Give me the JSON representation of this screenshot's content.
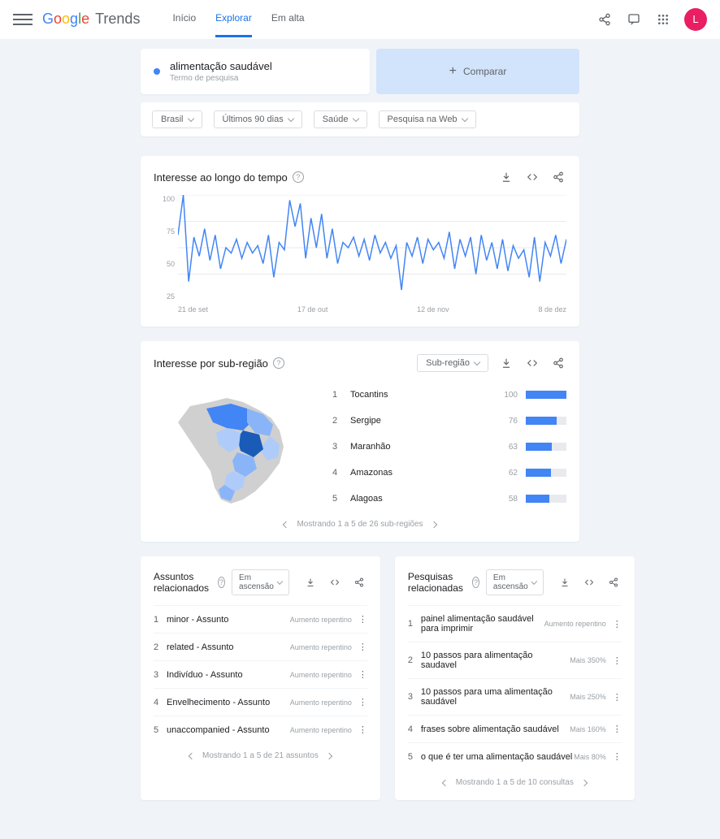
{
  "header": {
    "logo_trends": "Trends",
    "tabs": [
      "Início",
      "Explorar",
      "Em alta"
    ],
    "active_tab": 1,
    "avatar_letter": "L"
  },
  "search": {
    "term": "alimentação saudável",
    "subtitle": "Termo de pesquisa",
    "compare_label": "Comparar"
  },
  "filters": [
    "Brasil",
    "Últimos 90 dias",
    "Saúde",
    "Pesquisa na Web"
  ],
  "interest_time": {
    "title": "Interesse ao longo do tempo",
    "y_ticks": [
      100,
      75,
      50,
      25
    ],
    "x_labels": [
      "21 de set",
      "17 de out",
      "12 de nov",
      "8 de dez"
    ],
    "line_color": "#4285f4",
    "values": [
      62,
      100,
      18,
      60,
      42,
      68,
      38,
      62,
      30,
      50,
      45,
      58,
      40,
      55,
      45,
      52,
      35,
      62,
      22,
      55,
      48,
      95,
      70,
      92,
      40,
      78,
      50,
      82,
      40,
      68,
      35,
      55,
      50,
      60,
      42,
      58,
      38,
      62,
      45,
      55,
      40,
      52,
      10,
      55,
      42,
      60,
      35,
      58,
      48,
      55,
      40,
      65,
      30,
      58,
      42,
      60,
      25,
      62,
      38,
      55,
      30,
      58,
      28,
      52,
      40,
      48,
      22,
      60,
      18,
      55,
      42,
      62,
      35,
      58
    ]
  },
  "interest_region": {
    "title": "Interesse por sub-região",
    "dropdown": "Sub-região",
    "rows": [
      {
        "rank": 1,
        "name": "Tocantins",
        "value": 100
      },
      {
        "rank": 2,
        "name": "Sergipe",
        "value": 76
      },
      {
        "rank": 3,
        "name": "Maranhão",
        "value": 63
      },
      {
        "rank": 4,
        "name": "Amazonas",
        "value": 62
      },
      {
        "rank": 5,
        "name": "Alagoas",
        "value": 58
      }
    ],
    "pager": "Mostrando 1 a 5 de 26 sub-regiões"
  },
  "related_topics": {
    "title": "Assuntos relacionados",
    "sort": "Em ascensão",
    "rows": [
      {
        "rank": 1,
        "text": "minor - Assunto",
        "metric": "Aumento repentino"
      },
      {
        "rank": 2,
        "text": "related - Assunto",
        "metric": "Aumento repentino"
      },
      {
        "rank": 3,
        "text": "Indivíduo - Assunto",
        "metric": "Aumento repentino"
      },
      {
        "rank": 4,
        "text": "Envelhecimento - Assunto",
        "metric": "Aumento repentino"
      },
      {
        "rank": 5,
        "text": "unaccompanied - Assunto",
        "metric": "Aumento repentino"
      }
    ],
    "pager": "Mostrando 1 a 5 de 21 assuntos"
  },
  "related_queries": {
    "title": "Pesquisas relacionadas",
    "sort": "Em ascensão",
    "rows": [
      {
        "rank": 1,
        "text": "painel alimentação saudável para imprimir",
        "metric": "Aumento repentino"
      },
      {
        "rank": 2,
        "text": "10 passos para alimentação saudavel",
        "metric": "Mais 350%"
      },
      {
        "rank": 3,
        "text": "10 passos para uma alimentação saudável",
        "metric": "Mais 250%"
      },
      {
        "rank": 4,
        "text": "frases sobre alimentação saudável",
        "metric": "Mais 160%"
      },
      {
        "rank": 5,
        "text": "o que é ter uma alimentação saudável",
        "metric": "Mais 80%"
      }
    ],
    "pager": "Mostrando 1 a 5 de 10 consultas"
  }
}
